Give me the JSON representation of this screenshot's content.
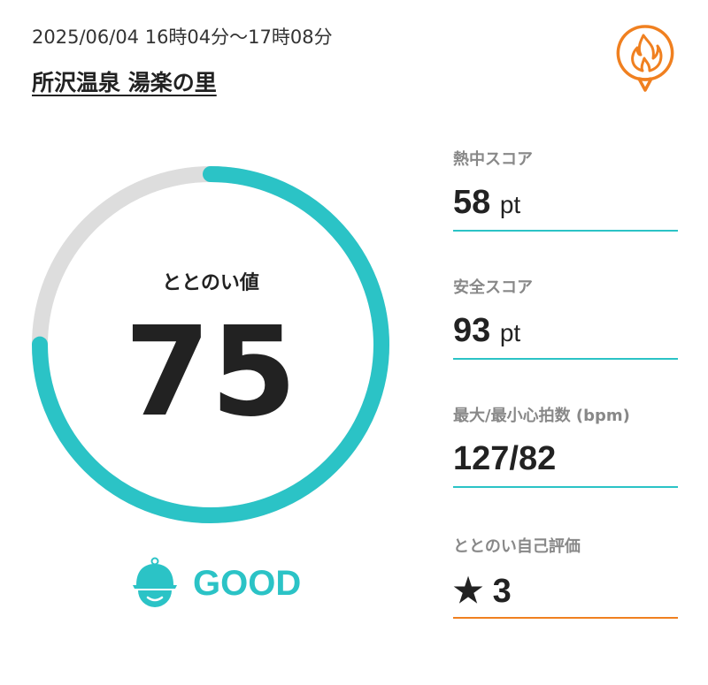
{
  "header": {
    "datetime": "2025/06/04 16時04分〜17時08分",
    "place": "所沢温泉 湯楽の里",
    "icon": "fire-speech-bubble-icon"
  },
  "totonoi": {
    "label": "ととのい値",
    "value": "75",
    "progress_percent": 75,
    "rating": "GOOD",
    "rating_icon": "sauna-hat-face-icon"
  },
  "stats": [
    {
      "label": "熱中スコア",
      "value": "58",
      "unit": "pt"
    },
    {
      "label": "安全スコア",
      "value": "93",
      "unit": "pt"
    },
    {
      "label": "最大/最小心拍数 (bpm)",
      "value": "127/82",
      "unit": ""
    },
    {
      "label": "ととのい自己評価",
      "star": "★",
      "value": "3",
      "unit": ""
    }
  ],
  "colors": {
    "accent": "#2bc3c6",
    "track": "#dddddd",
    "orange": "#f08020"
  }
}
